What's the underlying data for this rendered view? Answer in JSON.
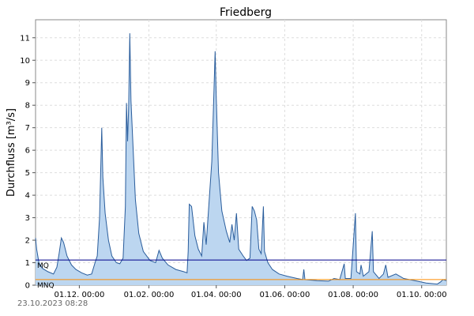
{
  "chart_data": {
    "type": "area",
    "title": "Friedberg",
    "ylabel": "Durchfluss [m³/s]",
    "xlabel": "",
    "xlim": [
      "2023-10-23",
      "2024-10-23"
    ],
    "ylim": [
      0,
      11.8
    ],
    "y_ticks": [
      0,
      1,
      2,
      3,
      4,
      5,
      6,
      7,
      8,
      9,
      10,
      11
    ],
    "x_ticks": [
      "2023-12-01",
      "2024-02-01",
      "2024-04-01",
      "2024-06-01",
      "2024-08-01",
      "2024-10-01"
    ],
    "x_tick_labels": [
      "01.12. 00:00",
      "01.02. 00:00",
      "01.04. 00:00",
      "01.06. 00:00",
      "01.08. 00:00",
      "01.10. 00:00"
    ],
    "grid": true,
    "colors": {
      "fill": "#bcd6f0",
      "line": "#2a5d9c",
      "mq": "#00008b",
      "mnq": "#ff8c00",
      "grid": "#dddddd"
    },
    "reference_lines": [
      {
        "label": "MQ",
        "value": 1.12,
        "color": "#00008b"
      },
      {
        "label": "MNQ",
        "value": 0.25,
        "color": "#ff8c00"
      }
    ],
    "series": [
      {
        "points": [
          [
            "2023-10-23",
            2.1
          ],
          [
            "2023-10-24",
            1.6
          ],
          [
            "2023-10-26",
            1.0
          ],
          [
            "2023-10-29",
            0.75
          ],
          [
            "2023-11-03",
            0.6
          ],
          [
            "2023-11-08",
            0.5
          ],
          [
            "2023-11-11",
            0.8
          ],
          [
            "2023-11-13",
            1.4
          ],
          [
            "2023-11-15",
            2.1
          ],
          [
            "2023-11-17",
            1.9
          ],
          [
            "2023-11-20",
            1.3
          ],
          [
            "2023-11-24",
            0.9
          ],
          [
            "2023-11-28",
            0.7
          ],
          [
            "2023-12-03",
            0.55
          ],
          [
            "2023-12-08",
            0.45
          ],
          [
            "2023-12-12",
            0.5
          ],
          [
            "2023-12-15",
            1.0
          ],
          [
            "2023-12-17",
            1.3
          ],
          [
            "2023-12-19",
            3.0
          ],
          [
            "2023-12-20",
            5.0
          ],
          [
            "2023-12-21",
            7.0
          ],
          [
            "2023-12-22",
            4.8
          ],
          [
            "2023-12-24",
            3.2
          ],
          [
            "2023-12-27",
            2.0
          ],
          [
            "2023-12-30",
            1.3
          ],
          [
            "2024-01-03",
            1.0
          ],
          [
            "2024-01-06",
            0.95
          ],
          [
            "2024-01-09",
            1.2
          ],
          [
            "2024-01-11",
            3.5
          ],
          [
            "2024-01-12",
            8.1
          ],
          [
            "2024-01-13",
            6.4
          ],
          [
            "2024-01-14",
            8.0
          ],
          [
            "2024-01-15",
            11.2
          ],
          [
            "2024-01-16",
            8.2
          ],
          [
            "2024-01-18",
            6.0
          ],
          [
            "2024-01-20",
            3.8
          ],
          [
            "2024-01-23",
            2.3
          ],
          [
            "2024-01-27",
            1.5
          ],
          [
            "2024-02-02",
            1.1
          ],
          [
            "2024-02-07",
            1.0
          ],
          [
            "2024-02-10",
            1.55
          ],
          [
            "2024-02-13",
            1.2
          ],
          [
            "2024-02-18",
            0.9
          ],
          [
            "2024-02-25",
            0.7
          ],
          [
            "2024-03-03",
            0.6
          ],
          [
            "2024-03-06",
            0.55
          ],
          [
            "2024-03-07",
            1.5
          ],
          [
            "2024-03-08",
            3.6
          ],
          [
            "2024-03-10",
            3.5
          ],
          [
            "2024-03-13",
            2.2
          ],
          [
            "2024-03-16",
            1.6
          ],
          [
            "2024-03-19",
            1.3
          ],
          [
            "2024-03-21",
            2.8
          ],
          [
            "2024-03-23",
            1.8
          ],
          [
            "2024-03-26",
            4.0
          ],
          [
            "2024-03-28",
            5.5
          ],
          [
            "2024-03-30",
            8.7
          ],
          [
            "2024-03-31",
            10.4
          ],
          [
            "2024-04-01",
            8.4
          ],
          [
            "2024-04-03",
            5.0
          ],
          [
            "2024-04-06",
            3.3
          ],
          [
            "2024-04-10",
            2.4
          ],
          [
            "2024-04-13",
            1.9
          ],
          [
            "2024-04-15",
            2.7
          ],
          [
            "2024-04-17",
            2.0
          ],
          [
            "2024-04-19",
            3.2
          ],
          [
            "2024-04-21",
            1.6
          ],
          [
            "2024-04-25",
            1.3
          ],
          [
            "2024-04-28",
            1.1
          ],
          [
            "2024-05-01",
            1.2
          ],
          [
            "2024-05-03",
            3.5
          ],
          [
            "2024-05-05",
            3.3
          ],
          [
            "2024-05-07",
            2.9
          ],
          [
            "2024-05-09",
            1.6
          ],
          [
            "2024-05-11",
            1.4
          ],
          [
            "2024-05-13",
            3.5
          ],
          [
            "2024-05-14",
            1.5
          ],
          [
            "2024-05-17",
            1.0
          ],
          [
            "2024-05-21",
            0.7
          ],
          [
            "2024-05-27",
            0.5
          ],
          [
            "2024-06-03",
            0.4
          ],
          [
            "2024-06-12",
            0.3
          ],
          [
            "2024-06-17",
            0.25
          ],
          [
            "2024-06-18",
            0.7
          ],
          [
            "2024-06-19",
            0.25
          ],
          [
            "2024-06-30",
            0.2
          ],
          [
            "2024-07-10",
            0.18
          ],
          [
            "2024-07-15",
            0.3
          ],
          [
            "2024-07-20",
            0.25
          ],
          [
            "2024-07-24",
            0.95
          ],
          [
            "2024-07-25",
            0.3
          ],
          [
            "2024-07-30",
            0.3
          ],
          [
            "2024-08-03",
            3.2
          ],
          [
            "2024-08-04",
            0.6
          ],
          [
            "2024-08-07",
            0.5
          ],
          [
            "2024-08-08",
            0.9
          ],
          [
            "2024-08-10",
            0.4
          ],
          [
            "2024-08-15",
            0.6
          ],
          [
            "2024-08-18",
            2.4
          ],
          [
            "2024-08-19",
            0.6
          ],
          [
            "2024-08-24",
            0.3
          ],
          [
            "2024-08-28",
            0.5
          ],
          [
            "2024-08-30",
            0.9
          ],
          [
            "2024-09-01",
            0.35
          ],
          [
            "2024-09-08",
            0.5
          ],
          [
            "2024-09-15",
            0.3
          ],
          [
            "2024-09-25",
            0.2
          ],
          [
            "2024-10-05",
            0.1
          ],
          [
            "2024-10-15",
            0.05
          ],
          [
            "2024-10-18",
            0.15
          ],
          [
            "2024-10-20",
            0.25
          ],
          [
            "2024-10-23",
            0.2
          ]
        ]
      }
    ]
  },
  "footer": {
    "timestamp": "23.10.2023  08:28"
  }
}
